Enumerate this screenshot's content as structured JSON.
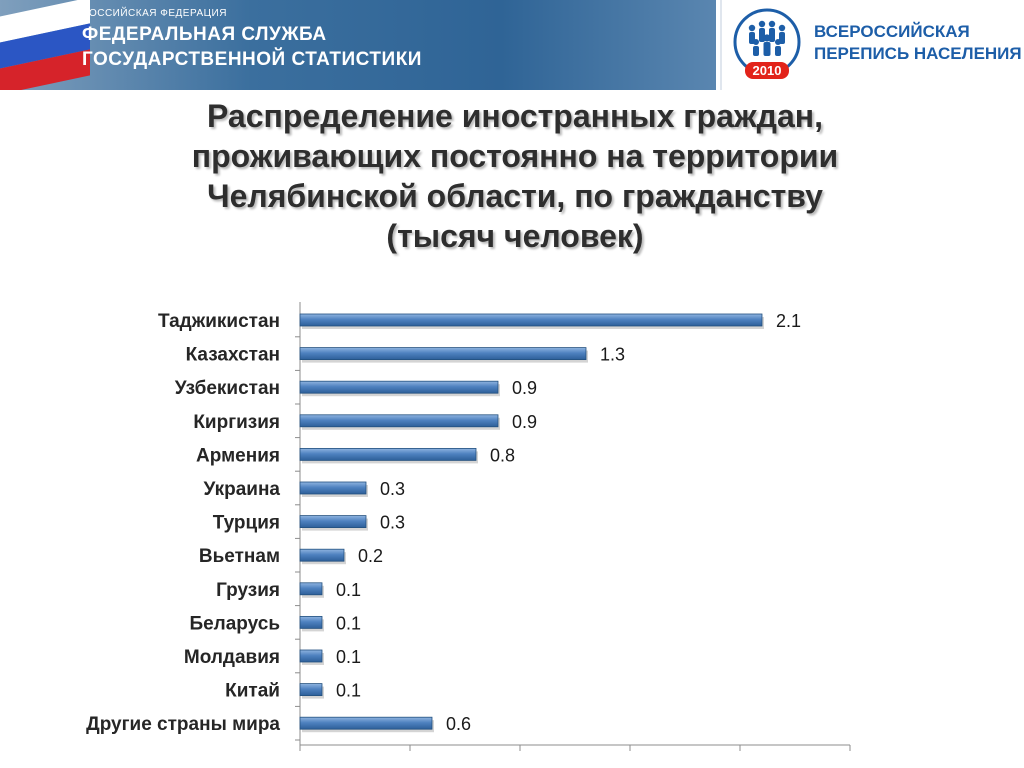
{
  "header": {
    "rosstat_small": "РОССИЙСКАЯ ФЕДЕРАЦИЯ",
    "rosstat_line1": "ФЕДЕРАЛЬНАЯ СЛУЖБА",
    "rosstat_line2": "ГОСУДАРСТВЕННОЙ СТАТИСТИКИ",
    "census_line1": "ВСЕРОССИЙСКАЯ",
    "census_line2": "ПЕРЕПИСЬ НАСЕЛЕНИЯ",
    "census_year": "2010"
  },
  "title_lines": [
    "Распределение иностранных граждан,",
    "проживающих постоянно на территории",
    "Челябинской области,  по гражданству",
    "(тысяч человек)"
  ],
  "colors": {
    "bar_dark": "#2d5f99",
    "bar_light": "#8fb4e0",
    "census_blue": "#1d5ea8",
    "census_red": "#e2231a"
  },
  "chart_data": {
    "type": "bar",
    "orientation": "horizontal",
    "categories": [
      "Таджикистан",
      "Казахстан",
      "Узбекистан",
      "Киргизия",
      "Армения",
      "Украина",
      "Турция",
      "Вьетнам",
      "Грузия",
      "Беларусь",
      "Молдавия",
      "Китай",
      "Другие страны мира"
    ],
    "values": [
      2.1,
      1.3,
      0.9,
      0.9,
      0.8,
      0.3,
      0.3,
      0.2,
      0.1,
      0.1,
      0.1,
      0.1,
      0.6
    ],
    "value_labels": [
      "2.1",
      "1.3",
      "0.9",
      "0.9",
      "0.8",
      "0.3",
      "0.3",
      "0.2",
      "0.1",
      "0.1",
      "0.1",
      "0.1",
      "0.6"
    ],
    "xlim": [
      0,
      2.5
    ],
    "x_tick_step": 0.5,
    "grid": false
  }
}
